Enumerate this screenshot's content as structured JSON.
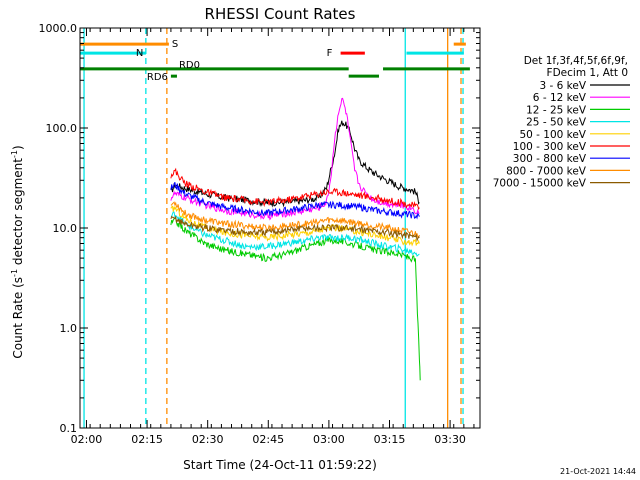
{
  "chart_data": {
    "type": "line",
    "title": "RHESSI Count Rates",
    "xlabel": "Start Time (24-Oct-11 01:59:22)",
    "ylabel_main": "Count Rate (s",
    "ylabel_sup1": "-1",
    "ylabel_mid": " detector segment",
    "ylabel_sup2": "-1",
    "ylabel_end": ")",
    "yscale": "log",
    "ylim": [
      0.1,
      1000
    ],
    "xlim_minutes": [
      -1.0,
      98.0
    ],
    "grid": false,
    "legend_position": "right",
    "x_ticks": [
      {
        "m": 0.6,
        "label": "02:00"
      },
      {
        "m": 15.6,
        "label": "02:15"
      },
      {
        "m": 30.6,
        "label": "02:30"
      },
      {
        "m": 45.6,
        "label": "02:45"
      },
      {
        "m": 60.6,
        "label": "03:00"
      },
      {
        "m": 75.6,
        "label": "03:15"
      },
      {
        "m": 90.6,
        "label": "03:30"
      }
    ],
    "y_ticks": [
      {
        "v": 1000,
        "label": "1000.0"
      },
      {
        "v": 100,
        "label": "100.0"
      },
      {
        "v": 10,
        "label": "10.0"
      },
      {
        "v": 1,
        "label": "1.0"
      },
      {
        "v": 0.1,
        "label": "0.1"
      }
    ],
    "legend_header": [
      "Det 1f,3f,4f,5f,6f,9f,",
      "FDecim 1, Att 0"
    ],
    "series": [
      {
        "name": "3 - 6 keV",
        "color": "#000000",
        "x": [
          21.5,
          22.5,
          25,
          30,
          35,
          40,
          45,
          50,
          55,
          58,
          60,
          62,
          63,
          64,
          65,
          66,
          67,
          68,
          70,
          72,
          75,
          78,
          81,
          82,
          83
        ],
        "y": [
          23,
          27,
          25,
          22,
          20,
          19,
          18,
          18,
          19,
          20,
          25,
          55,
          100,
          115,
          105,
          88,
          62,
          48,
          40,
          35,
          30,
          26,
          24,
          23,
          18
        ]
      },
      {
        "name": "6 - 12 keV",
        "color": "#ff00ff",
        "x": [
          21.5,
          22.5,
          25,
          30,
          35,
          40,
          45,
          50,
          55,
          58,
          60,
          61,
          62,
          63,
          64,
          65,
          66,
          67,
          68,
          69,
          70,
          71,
          72,
          74,
          78,
          81,
          83
        ],
        "y": [
          20,
          22,
          20,
          17,
          15,
          14,
          13,
          14,
          15,
          16,
          18,
          30,
          75,
          150,
          195,
          135,
          70,
          38,
          28,
          24,
          22,
          20,
          19,
          18,
          17,
          16,
          14
        ]
      },
      {
        "name": "12 - 25 keV",
        "color": "#00cc00",
        "x": [
          21.5,
          22.5,
          25,
          30,
          35,
          40,
          45,
          50,
          55,
          58,
          60,
          63,
          66,
          69,
          72,
          75,
          78,
          81,
          82,
          82.5,
          83,
          83.2
        ],
        "y": [
          11,
          12,
          9.5,
          7,
          6,
          5.5,
          5,
          5.5,
          6.5,
          7,
          7.5,
          7.5,
          7,
          6.5,
          6,
          5.8,
          5.5,
          5,
          4.8,
          1.5,
          0.5,
          0.3
        ]
      },
      {
        "name": "25 - 50 keV",
        "color": "#00e5e5",
        "x": [
          21.5,
          22.5,
          25,
          30,
          35,
          40,
          45,
          50,
          55,
          58,
          60,
          63,
          66,
          69,
          72,
          75,
          78,
          81,
          83
        ],
        "y": [
          13,
          14,
          11,
          8.5,
          7.5,
          6.5,
          6.5,
          7,
          7.5,
          8,
          8,
          8,
          8,
          7.5,
          7,
          6.5,
          6.2,
          5.8,
          5.5
        ]
      },
      {
        "name": "50 - 100 keV",
        "color": "#ffd000",
        "x": [
          21.5,
          22.5,
          25,
          30,
          35,
          40,
          45,
          50,
          55,
          58,
          60,
          63,
          66,
          69,
          72,
          75,
          78,
          81,
          83
        ],
        "y": [
          15,
          16,
          12.5,
          10,
          9,
          8.5,
          8,
          8.5,
          9,
          9.5,
          10,
          10,
          9.5,
          9,
          8.5,
          8,
          7.5,
          7.2,
          7
        ]
      },
      {
        "name": "100 - 300 keV",
        "color": "#ff0000",
        "x": [
          21.5,
          22.5,
          25,
          30,
          35,
          40,
          45,
          50,
          55,
          58,
          60,
          63,
          66,
          69,
          72,
          75,
          78,
          81,
          83
        ],
        "y": [
          34,
          37,
          28,
          23,
          20,
          19,
          18,
          19,
          21,
          22,
          23,
          23,
          22,
          21,
          20,
          19,
          18,
          17,
          16
        ]
      },
      {
        "name": "300 - 800 keV",
        "color": "#0000ff",
        "x": [
          21.5,
          22.5,
          25,
          30,
          35,
          40,
          45,
          50,
          55,
          58,
          60,
          63,
          66,
          69,
          72,
          75,
          78,
          81,
          83
        ],
        "y": [
          25,
          27,
          22,
          18,
          16,
          15,
          14,
          15,
          16,
          17,
          17,
          17,
          16.5,
          16,
          15,
          14.5,
          14,
          13.5,
          13
        ]
      },
      {
        "name": "800 - 7000 keV",
        "color": "#ff8c00",
        "x": [
          21.5,
          22.5,
          25,
          30,
          35,
          40,
          45,
          50,
          55,
          58,
          60,
          63,
          66,
          69,
          72,
          75,
          78,
          81,
          83
        ],
        "y": [
          17,
          18,
          14,
          12,
          11,
          10.5,
          10,
          10.5,
          11,
          11.5,
          12,
          12,
          11.5,
          11,
          10.5,
          10,
          9.5,
          9,
          8.5
        ]
      },
      {
        "name": "7000 - 15000 keV",
        "color": "#8b5a00",
        "x": [
          21.5,
          22.5,
          25,
          30,
          35,
          40,
          45,
          50,
          55,
          60,
          65,
          70,
          75,
          80,
          83
        ],
        "y": [
          12,
          12.5,
          11,
          10,
          9.5,
          9,
          9,
          9.5,
          10,
          10,
          10,
          9.5,
          9,
          8.5,
          8
        ]
      }
    ],
    "annotations": {
      "vlines": [
        {
          "m": 0.0,
          "color": "#00e5e5",
          "dash": false
        },
        {
          "m": 15.3,
          "color": "#00e5e5",
          "dash": true
        },
        {
          "m": 20.5,
          "color": "#ff8c00",
          "dash": true
        },
        {
          "m": 79.5,
          "color": "#00e5e5",
          "dash": false
        },
        {
          "m": 90.0,
          "color": "#ff8c00",
          "dash": false
        },
        {
          "m": 93.3,
          "color": "#ff8c00",
          "dash": true
        },
        {
          "m": 93.8,
          "color": "#00e5e5",
          "dash": true
        }
      ],
      "bars": [
        {
          "label": "S",
          "color": "#ff8c00",
          "y": 690,
          "segments": [
            [
              -1,
              21.0
            ],
            [
              91.5,
              94.5
            ]
          ]
        },
        {
          "label": "N",
          "color": "#00e5e5",
          "y": 560,
          "segments": [
            [
              -1,
              15.3
            ],
            [
              79.8,
              94.0
            ]
          ]
        },
        {
          "label": "F",
          "color": "#ff0000",
          "y": 560,
          "segments": [
            [
              63.5,
              69.5
            ]
          ]
        },
        {
          "label": "RD0",
          "color": "#008000",
          "y": 390,
          "segments": [
            [
              -1,
              65.5
            ],
            [
              74.0,
              95.5
            ]
          ]
        },
        {
          "label": "RD6",
          "color": "#008000",
          "y": 330,
          "segments": [
            [
              21.5,
              23.0
            ],
            [
              65.5,
              73.0
            ]
          ]
        }
      ]
    }
  },
  "footer_timestamp": "21-Oct-2021 14:44"
}
